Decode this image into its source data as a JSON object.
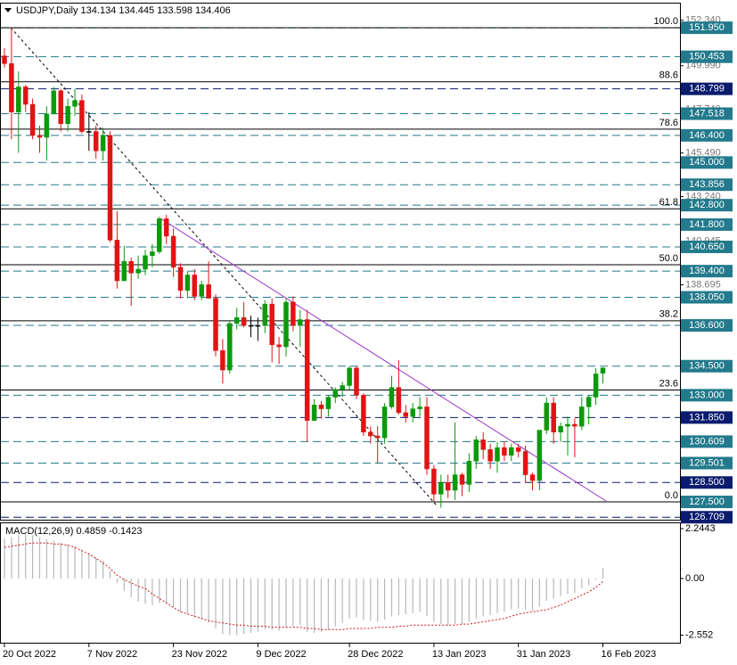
{
  "chart_data": [
    {
      "type": "candlestick",
      "title": "USDJPY,Daily  134.134 134.445 133.598 134.406",
      "categories": [
        "20 Oct 2022",
        null,
        null,
        null,
        null,
        null,
        null,
        null,
        null,
        null,
        null,
        null,
        "7 Nov 2022",
        null,
        null,
        null,
        null,
        null,
        null,
        null,
        null,
        null,
        null,
        null,
        "23 Nov 2022",
        null,
        null,
        null,
        null,
        null,
        null,
        null,
        null,
        null,
        null,
        null,
        "9 Dec 2022",
        null,
        null,
        null,
        null,
        null,
        null,
        null,
        null,
        null,
        null,
        null,
        null,
        "28 Dec 2022",
        null,
        null,
        null,
        null,
        null,
        null,
        null,
        null,
        null,
        null,
        null,
        "13 Jan 2023",
        null,
        null,
        null,
        null,
        null,
        null,
        null,
        null,
        null,
        null,
        null,
        "31 Jan 2023",
        null,
        null,
        null,
        null,
        null,
        null,
        null,
        null,
        null,
        null,
        null,
        "16 Feb 2023"
      ],
      "open": [
        150.5,
        150.1,
        147.6,
        148.9,
        148.0,
        146.4,
        146.3,
        147.5,
        148.7,
        147.0,
        147.9,
        148.2,
        146.6,
        146.6,
        145.6,
        146.4,
        141.0,
        138.9,
        139.9,
        139.3,
        139.5,
        140.2,
        140.4,
        142.1,
        141.2,
        139.6,
        138.4,
        139.2,
        138.1,
        138.7,
        138.0,
        135.3,
        134.3,
        136.7,
        137.0,
        136.6,
        136.6,
        136.6,
        137.7,
        135.6,
        135.5,
        137.8,
        136.6,
        136.9,
        131.7,
        132.5,
        132.3,
        132.9,
        133.3,
        133.5,
        134.4,
        133.0,
        131.1,
        130.9,
        130.8,
        132.4,
        133.4,
        132.1,
        131.9,
        132.3,
        132.4,
        129.2,
        127.9,
        128.5,
        128.1,
        128.9,
        128.4,
        129.6,
        130.7,
        130.2,
        129.6,
        130.3,
        129.9,
        130.3,
        130.1,
        128.9,
        128.6,
        131.2,
        132.6,
        131.1,
        131.4,
        131.5,
        131.4,
        132.4,
        132.9,
        134.134
      ],
      "high": [
        150.9,
        151.95,
        149.7,
        149.0,
        148.3,
        146.9,
        147.9,
        148.9,
        148.8,
        148.3,
        148.8,
        148.5,
        147.6,
        146.9,
        146.8,
        146.6,
        142.5,
        140.7,
        140.1,
        140.2,
        140.5,
        140.8,
        142.2,
        142.3,
        141.6,
        139.8,
        139.4,
        139.5,
        138.9,
        139.9,
        138.2,
        135.9,
        136.8,
        137.5,
        137.8,
        137.1,
        137.0,
        137.9,
        138.0,
        136.0,
        138.0,
        138.1,
        137.4,
        137.4,
        132.8,
        132.7,
        133.0,
        133.4,
        133.7,
        134.5,
        134.5,
        133.1,
        131.4,
        131.4,
        132.6,
        134.0,
        134.8,
        132.5,
        132.6,
        132.9,
        132.9,
        129.4,
        128.9,
        128.9,
        131.6,
        129.0,
        130.0,
        130.9,
        131.1,
        130.5,
        130.6,
        130.6,
        130.5,
        130.5,
        130.4,
        129.0,
        131.2,
        132.9,
        132.9,
        131.6,
        131.9,
        131.8,
        132.9,
        133.0,
        134.4,
        134.445
      ],
      "low": [
        149.9,
        146.2,
        145.5,
        147.6,
        146.2,
        145.5,
        145.1,
        147.5,
        146.6,
        146.6,
        147.4,
        146.5,
        145.6,
        145.2,
        145.1,
        140.9,
        138.5,
        138.9,
        137.6,
        139.0,
        139.2,
        139.6,
        140.3,
        140.8,
        139.1,
        138.0,
        138.0,
        137.9,
        137.9,
        138.0,
        135.0,
        133.6,
        134.1,
        136.4,
        136.5,
        136.0,
        135.8,
        136.2,
        134.7,
        134.6,
        135.0,
        136.3,
        135.5,
        130.6,
        131.7,
        131.8,
        131.9,
        132.6,
        132.9,
        133.3,
        132.8,
        130.9,
        130.5,
        129.5,
        130.5,
        132.3,
        132.0,
        131.6,
        131.6,
        131.9,
        128.9,
        127.5,
        127.2,
        127.7,
        127.6,
        127.8,
        128.0,
        129.2,
        129.7,
        129.2,
        129.0,
        129.6,
        129.6,
        129.8,
        128.5,
        128.1,
        128.1,
        131.0,
        130.5,
        130.6,
        129.9,
        129.8,
        131.2,
        131.5,
        132.5,
        133.598
      ],
      "close": [
        150.1,
        147.6,
        148.9,
        148.0,
        146.4,
        146.3,
        147.5,
        148.7,
        147.0,
        147.9,
        148.2,
        146.6,
        146.6,
        145.6,
        146.4,
        141.0,
        138.9,
        139.9,
        139.3,
        139.5,
        140.2,
        140.4,
        142.1,
        141.2,
        139.6,
        138.4,
        139.2,
        138.1,
        138.7,
        138.0,
        135.3,
        134.3,
        136.7,
        137.0,
        136.6,
        136.6,
        136.6,
        137.7,
        135.6,
        135.5,
        137.8,
        136.6,
        136.9,
        131.7,
        132.5,
        132.3,
        132.9,
        133.3,
        133.5,
        134.4,
        133.0,
        131.1,
        130.9,
        130.8,
        132.4,
        133.4,
        132.1,
        131.9,
        132.3,
        132.4,
        129.2,
        127.9,
        128.5,
        128.1,
        128.9,
        128.4,
        129.6,
        130.7,
        130.2,
        129.6,
        130.3,
        129.9,
        130.3,
        130.1,
        128.9,
        128.6,
        131.2,
        132.6,
        131.1,
        131.4,
        131.5,
        131.4,
        132.4,
        132.9,
        134.1,
        134.406
      ],
      "up_color": "#0a9a0a",
      "down_color": "#e01414",
      "doji_color": "#000000",
      "ylim": [
        126.72,
        153.15
      ],
      "yticks": [
        {
          "value": 152.34,
          "label": "152.340"
        },
        {
          "value": 149.99,
          "label": "149.990"
        },
        {
          "value": 147.74,
          "label": "147.740"
        },
        {
          "value": 145.49,
          "label": "145.490"
        },
        {
          "value": 143.24,
          "label": "143.240"
        },
        140.945,
        138.695
      ],
      "levels": [
        {
          "value": 151.95,
          "label": "151.950",
          "color": "#237a8c"
        },
        {
          "value": 150.453,
          "label": "150.453",
          "color": "#237a8c"
        },
        {
          "value": 148.799,
          "label": "148.799",
          "color": "#0b1c6e"
        },
        {
          "value": 147.518,
          "label": "147.518",
          "color": "#237a8c"
        },
        {
          "value": 146.4,
          "label": "146.400",
          "color": "#237a8c"
        },
        {
          "value": 145.0,
          "label": "145.000",
          "color": "#237a8c"
        },
        {
          "value": 143.856,
          "label": "143.856",
          "color": "#237a8c"
        },
        {
          "value": 142.8,
          "label": "142.800",
          "color": "#237a8c"
        },
        {
          "value": 141.8,
          "label": "141.800",
          "color": "#237a8c"
        },
        {
          "value": 140.65,
          "label": "140.650",
          "color": "#237a8c"
        },
        {
          "value": 139.4,
          "label": "139.400",
          "color": "#237a8c"
        },
        {
          "value": 138.05,
          "label": "138.050",
          "color": "#237a8c"
        },
        {
          "value": 136.6,
          "label": "136.600",
          "color": "#237a8c"
        },
        {
          "value": 134.5,
          "label": "134.500",
          "color": "#237a8c"
        },
        {
          "value": 133.0,
          "label": "133.000",
          "color": "#237a8c"
        },
        {
          "value": 131.85,
          "label": "131.850",
          "color": "#0b1c6e"
        },
        {
          "value": 130.609,
          "label": "130.609",
          "color": "#237a8c"
        },
        {
          "value": 129.501,
          "label": "129.501",
          "color": "#237a8c"
        },
        {
          "value": 128.5,
          "label": "128.500",
          "color": "#0b1c6e"
        },
        {
          "value": 127.5,
          "label": "127.500",
          "color": "#237a8c"
        },
        {
          "value": 126.709,
          "label": "126.709",
          "color": "#0b1c6e"
        }
      ],
      "fib_levels": [
        {
          "level": {
            "value": 100,
            "label": "100.0"
          },
          "price": 151.95
        },
        {
          "level": 88.6,
          "price": 149.16
        },
        {
          "level": 78.6,
          "price": 146.72
        },
        {
          "level": 61.8,
          "price": 142.61
        },
        {
          "level": {
            "value": 50,
            "label": "50.0"
          },
          "price": 139.73
        },
        {
          "level": 38.2,
          "price": 136.84
        },
        {
          "level": 23.6,
          "price": 133.27
        },
        {
          "level": {
            "value": 0,
            "label": "0.0"
          },
          "price": 127.5
        }
      ]
    },
    {
      "type": "macd",
      "title": "MACD(12,26,9) 0.4859 -0.1423",
      "series": [
        {
          "color": "#b8b8b8",
          "style": "histogram",
          "values": [
            1.8,
            1.85,
            1.95,
            2.0,
            1.95,
            1.85,
            1.75,
            1.7,
            1.6,
            1.55,
            1.45,
            1.3,
            1.15,
            0.95,
            0.8,
            0.35,
            -0.2,
            -0.55,
            -0.85,
            -1.05,
            -1.15,
            -1.2,
            -1.1,
            -1.15,
            -1.3,
            -1.5,
            -1.6,
            -1.75,
            -1.85,
            -2.0,
            -2.25,
            -2.5,
            -2.55,
            -2.55,
            -2.5,
            -2.45,
            -2.4,
            -2.3,
            -2.3,
            -2.35,
            -2.2,
            -2.15,
            -2.1,
            -2.4,
            -2.45,
            -2.4,
            -2.3,
            -2.15,
            -2.0,
            -1.8,
            -1.75,
            -1.85,
            -1.9,
            -1.95,
            -1.85,
            -1.7,
            -1.65,
            -1.6,
            -1.55,
            -1.5,
            -1.7,
            -1.95,
            -2.05,
            -2.1,
            -2.05,
            -2.05,
            -1.95,
            -1.8,
            -1.7,
            -1.65,
            -1.55,
            -1.5,
            -1.4,
            -1.35,
            -1.4,
            -1.45,
            -1.25,
            -1.0,
            -0.9,
            -0.8,
            -0.7,
            -0.65,
            -0.45,
            -0.3,
            -0.05,
            0.4859
          ]
        },
        {
          "color": "#d01818",
          "style": "dotted",
          "values": [
            1.4,
            1.45,
            1.5,
            1.55,
            1.6,
            1.6,
            1.6,
            1.55,
            1.55,
            1.5,
            1.4,
            1.25,
            1.1,
            0.9,
            0.7,
            0.45,
            0.15,
            -0.05,
            -0.2,
            -0.35,
            -0.45,
            -0.7,
            -0.9,
            -1.1,
            -1.3,
            -1.5,
            -1.6,
            -1.7,
            -1.8,
            -1.9,
            -1.95,
            -2.0,
            -2.05,
            -2.1,
            -2.1,
            -2.15,
            -2.15,
            -2.15,
            -2.2,
            -2.2,
            -2.2,
            -2.2,
            -2.2,
            -2.25,
            -2.25,
            -2.3,
            -2.3,
            -2.3,
            -2.3,
            -2.25,
            -2.25,
            -2.25,
            -2.25,
            -2.2,
            -2.2,
            -2.2,
            -2.15,
            -2.15,
            -2.1,
            -2.1,
            -2.1,
            -2.1,
            -2.1,
            -2.1,
            -2.1,
            -2.05,
            -2.05,
            -2.0,
            -1.95,
            -1.9,
            -1.85,
            -1.8,
            -1.7,
            -1.6,
            -1.55,
            -1.5,
            -1.45,
            -1.4,
            -1.3,
            -1.2,
            -1.05,
            -0.9,
            -0.75,
            -0.6,
            -0.4,
            -0.1423
          ]
        }
      ],
      "ylim": [
        -2.85,
        2.445
      ],
      "yticks": [
        2.2443,
        {
          "value": 0,
          "label": "0.00"
        },
        -2.552
      ]
    }
  ]
}
